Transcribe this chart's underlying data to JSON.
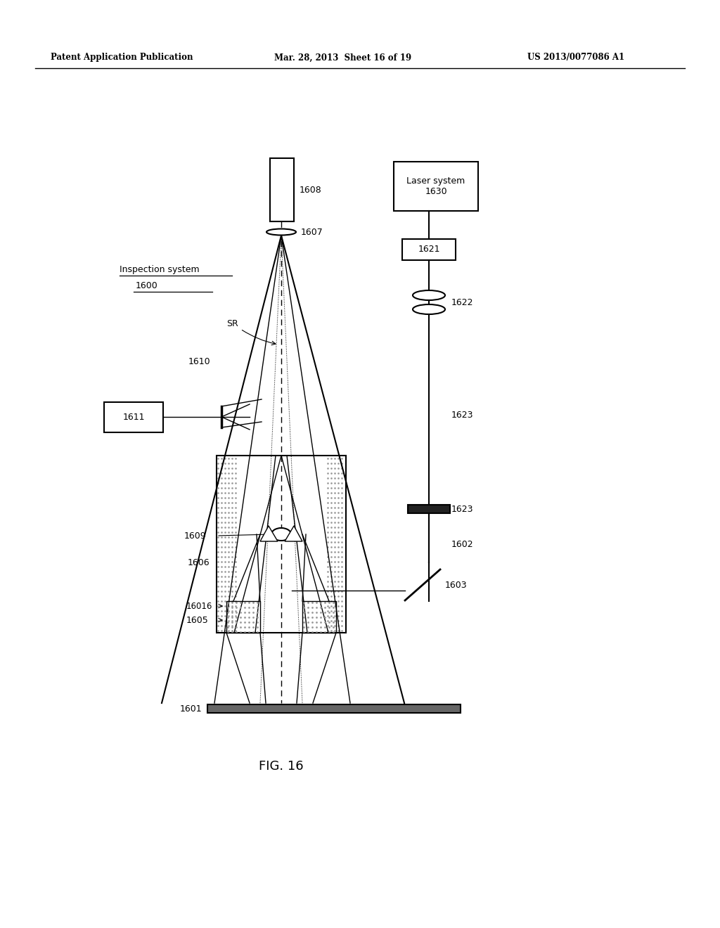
{
  "bg_color": "#ffffff",
  "header_left": "Patent Application Publication",
  "header_mid": "Mar. 28, 2013  Sheet 16 of 19",
  "header_right": "US 2013/0077086 A1",
  "fig_label": "FIG. 16",
  "laser_system_label": "Laser system\n1630",
  "inspection_system_line1": "Inspection system",
  "inspection_system_line2": "1600"
}
